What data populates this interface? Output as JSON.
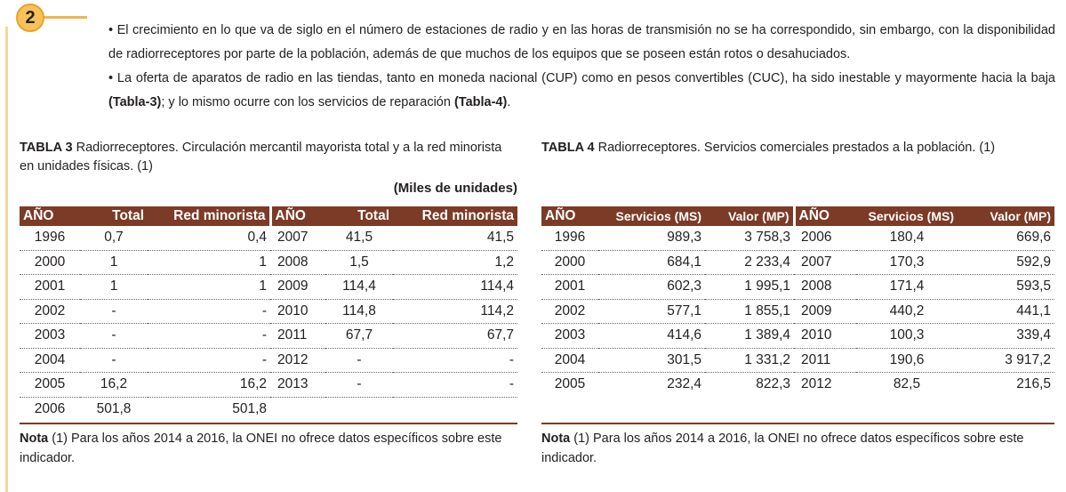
{
  "section_number": "2",
  "intro": [
    "• El crecimiento en lo que va de siglo en el número de estaciones de radio y en las horas de transmisión no se ha correspondido, sin embargo, con la disponibilidad de radiorreceptores por parte de la población, además de que muchos de los equipos que se poseen están rotos o desahuciados.",
    {
      "before": "• La oferta de aparatos de radio en las tiendas, tanto en moneda nacional (CUP) como en pesos convertibles (CUC), ha sido inestable y mayormente hacia la baja ",
      "ref1": "(Tabla-3)",
      "middle": "; y lo mismo ocurre con los servicios de reparación ",
      "ref2": "(Tabla-4)",
      "after": "."
    }
  ],
  "tabla3": {
    "label": "TABLA 3",
    "caption": " Radiorreceptores. Circulación mercantil mayorista total y a la red minorista en unidades físicas. (1)",
    "units": "(Miles de unidades)",
    "headers": [
      "AÑO",
      "Total",
      "Red minorista",
      "AÑO",
      "Total",
      "Red minorista"
    ],
    "rows": [
      [
        "1996",
        "0,7",
        "0,4",
        "2007",
        "41,5",
        "41,5"
      ],
      [
        "2000",
        "1",
        "1",
        "2008",
        "1,5",
        "1,2"
      ],
      [
        "2001",
        "1",
        "1",
        "2009",
        "114,4",
        "114,4"
      ],
      [
        "2002",
        "-",
        "-",
        "2010",
        "114,8",
        "114,2"
      ],
      [
        "2003",
        "-",
        "-",
        "2011",
        "67,7",
        "67,7"
      ],
      [
        "2004",
        "-",
        "-",
        "2012",
        "-",
        "-"
      ],
      [
        "2005",
        "16,2",
        "16,2",
        "2013",
        "-",
        "-"
      ],
      [
        "2006",
        "501,8",
        "501,8",
        "",
        "",
        ""
      ]
    ],
    "note_label": "Nota",
    "note_text": " (1) Para los años 2014 a 2016, la ONEI no ofrece datos específicos sobre este indicador."
  },
  "tabla4": {
    "label": "TABLA 4",
    "caption": " Radiorreceptores. Servicios comerciales prestados a la población. (1)",
    "headers": [
      "AÑO",
      "Servicios (MS)",
      "Valor (MP)",
      "AÑO",
      "Servicios (MS)",
      "Valor (MP)"
    ],
    "rows": [
      [
        "1996",
        "989,3",
        "3 758,3",
        "2006",
        "180,4",
        "669,6"
      ],
      [
        "2000",
        "684,1",
        "2 233,4",
        "2007",
        "170,3",
        "592,9"
      ],
      [
        "2001",
        "602,3",
        "1 995,1",
        "2008",
        "171,4",
        "593,5"
      ],
      [
        "2002",
        "577,1",
        "1 855,1",
        "2009",
        "440,2",
        "441,1"
      ],
      [
        "2003",
        "414,6",
        "1 389,4",
        "2010",
        "100,3",
        "339,4"
      ],
      [
        "2004",
        "301,5",
        "1 331,2",
        "2011",
        "190,6",
        "3 917,2"
      ],
      [
        "2005",
        "232,4",
        "822,3",
        "2012",
        "82,5",
        "216,5"
      ]
    ],
    "note_label": "Nota",
    "note_text": " (1) Para los años 2014 a 2016, la ONEI no ofrece datos específicos sobre este indicador."
  },
  "colors": {
    "header_bg": "#7b3b26",
    "badge": "#f7c257",
    "accent_line": "#f0b64a"
  }
}
